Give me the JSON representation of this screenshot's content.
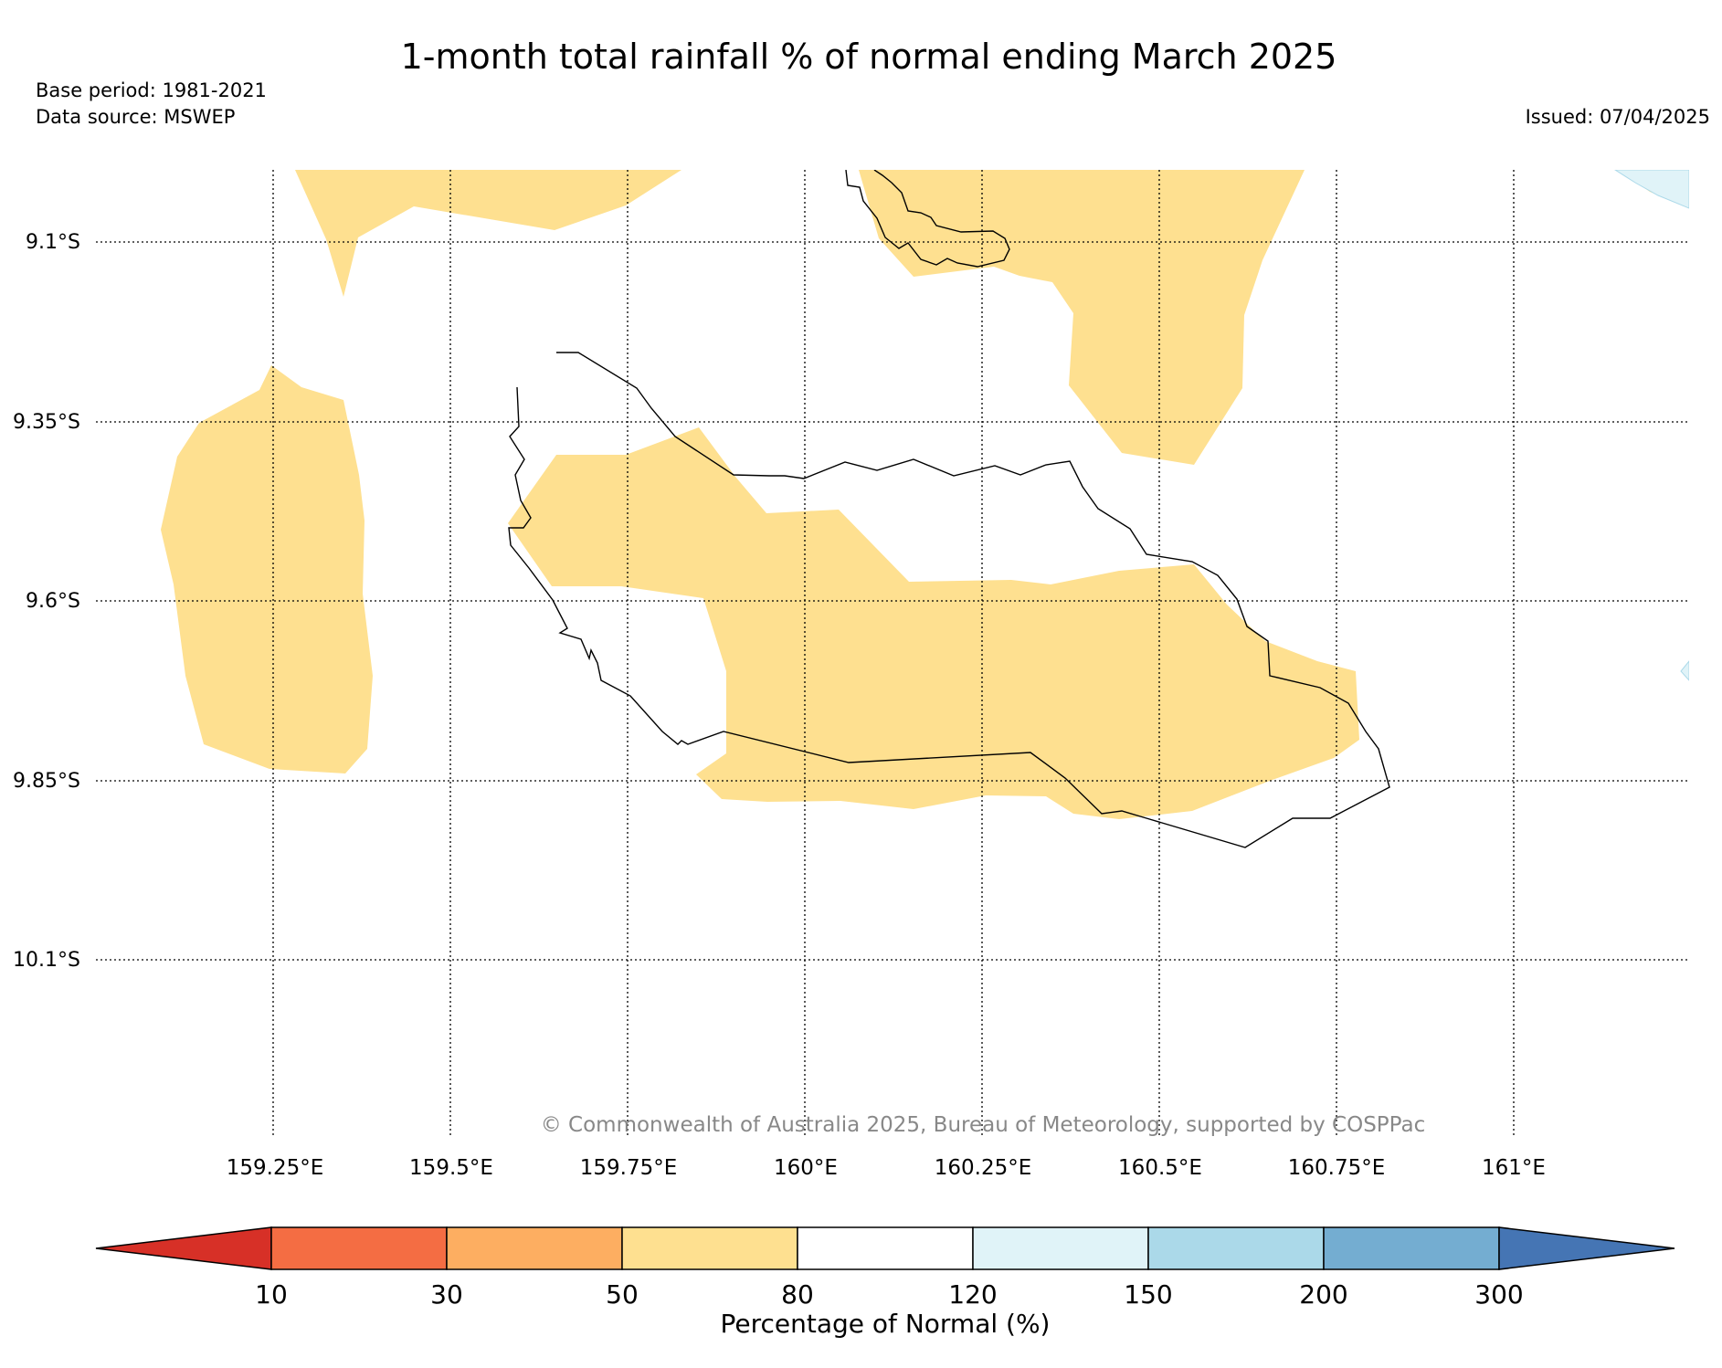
{
  "header": {
    "title": "1-month total rainfall % of normal ending March 2025",
    "base_period": "Base period: 1981-2021",
    "data_source": "Data source: MSWEP",
    "issued": "Issued: 07/04/2025"
  },
  "map": {
    "lat_labels": [
      "9.1°S",
      "9.35°S",
      "9.6°S",
      "9.85°S",
      "10.1°S"
    ],
    "lon_labels": [
      "159.25°E",
      "159.5°E",
      "159.75°E",
      "160°E",
      "160.25°E",
      "160.5°E",
      "160.75°E",
      "161°E"
    ],
    "copyright": "© Commonwealth of Australia 2025, Bureau of Meteorology, supported by COSPPac"
  },
  "colorbar": {
    "label": "Percentage of Normal (%)",
    "ticks": [
      "10",
      "30",
      "50",
      "80",
      "120",
      "150",
      "200",
      "300"
    ],
    "colors": {
      "below_10": "#d73027",
      "10_30": "#f46d43",
      "30_50": "#fdae61",
      "50_80": "#fee090",
      "80_120": "#ffffff",
      "120_150": "#e0f3f8",
      "150_200": "#abd9e9",
      "200_300": "#74add1",
      "above_300": "#4575b4"
    }
  }
}
